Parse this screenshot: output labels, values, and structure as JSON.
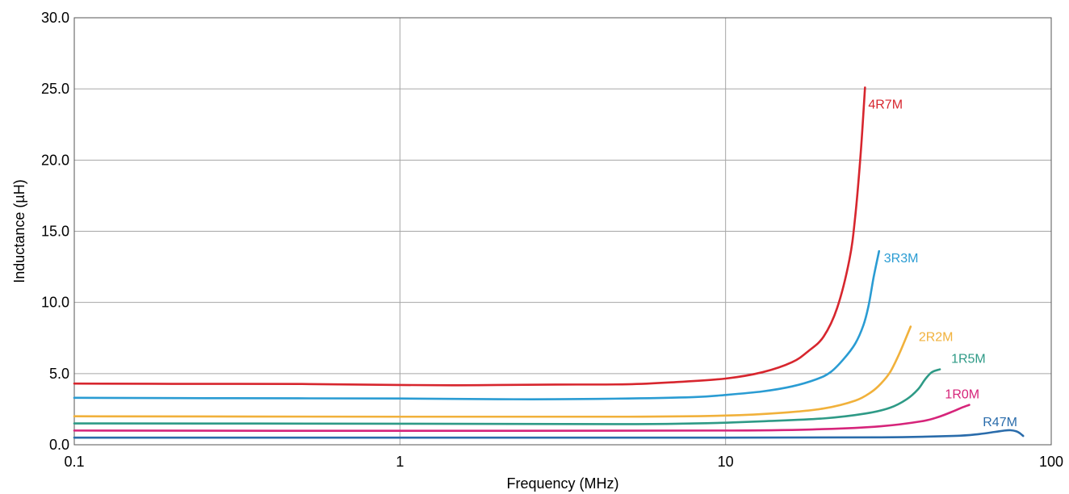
{
  "chart_data": {
    "type": "line",
    "xlabel": "Frequency (MHz)",
    "ylabel": "Inductance (µH)",
    "x_scale": "log",
    "xlim": [
      0.1,
      100
    ],
    "ylim": [
      0,
      30
    ],
    "x_ticks": [
      0.1,
      1,
      10,
      100
    ],
    "x_tick_labels": [
      "0.1",
      "1",
      "10",
      "100"
    ],
    "y_ticks": [
      0,
      5,
      10,
      15,
      20,
      25,
      30
    ],
    "y_tick_labels": [
      "0.0",
      "5.0",
      "10.0",
      "15.0",
      "20.0",
      "25.0",
      "30.0"
    ],
    "grid": true,
    "legend": "inline labels at line ends",
    "series": [
      {
        "name": "4R7M",
        "color": "#d7262e",
        "x": [
          0.1,
          0.2,
          0.5,
          1,
          1.5,
          2,
          3,
          5,
          7,
          10,
          13,
          16,
          18,
          20,
          22,
          24,
          25,
          26,
          26.8
        ],
        "y": [
          4.3,
          4.28,
          4.27,
          4.2,
          4.18,
          4.2,
          4.23,
          4.25,
          4.4,
          4.65,
          5.1,
          5.8,
          6.6,
          7.6,
          9.6,
          13.0,
          16.0,
          20.5,
          25.1
        ]
      },
      {
        "name": "3R3M",
        "color": "#2a9cd3",
        "x": [
          0.1,
          0.3,
          1,
          2,
          3,
          5,
          8,
          10,
          13,
          16,
          19,
          21,
          23,
          25,
          26.5,
          27.5,
          28.5,
          29.6
        ],
        "y": [
          3.3,
          3.27,
          3.25,
          3.2,
          3.2,
          3.25,
          3.35,
          3.5,
          3.75,
          4.1,
          4.6,
          5.1,
          6.0,
          7.1,
          8.4,
          9.8,
          11.8,
          13.6
        ]
      },
      {
        "name": "2R2M",
        "color": "#f1b13b",
        "x": [
          0.1,
          1,
          5,
          10,
          15,
          20,
          25,
          28,
          30,
          32,
          34,
          35.5,
          37
        ],
        "y": [
          2.0,
          1.97,
          1.97,
          2.05,
          2.25,
          2.55,
          3.1,
          3.7,
          4.3,
          5.1,
          6.3,
          7.3,
          8.3
        ]
      },
      {
        "name": "1R5M",
        "color": "#2e9a86",
        "x": [
          0.1,
          1,
          5,
          8,
          10,
          13,
          20,
          27,
          32,
          36,
          39,
          41,
          43,
          45.5
        ],
        "y": [
          1.5,
          1.48,
          1.45,
          1.5,
          1.55,
          1.65,
          1.85,
          2.2,
          2.6,
          3.2,
          3.9,
          4.6,
          5.1,
          5.3
        ]
      },
      {
        "name": "1R0M",
        "color": "#d6247a",
        "x": [
          0.1,
          1,
          10,
          20,
          30,
          40,
          45,
          50,
          53,
          56
        ],
        "y": [
          1.0,
          0.98,
          1.0,
          1.1,
          1.3,
          1.65,
          1.95,
          2.35,
          2.6,
          2.8
        ]
      },
      {
        "name": "R47M",
        "color": "#2a6cab",
        "x": [
          0.1,
          1,
          10,
          30,
          50,
          60,
          67,
          72,
          75,
          78,
          80,
          82
        ],
        "y": [
          0.5,
          0.5,
          0.5,
          0.52,
          0.62,
          0.75,
          0.9,
          1.0,
          1.02,
          0.95,
          0.82,
          0.62
        ]
      }
    ]
  }
}
